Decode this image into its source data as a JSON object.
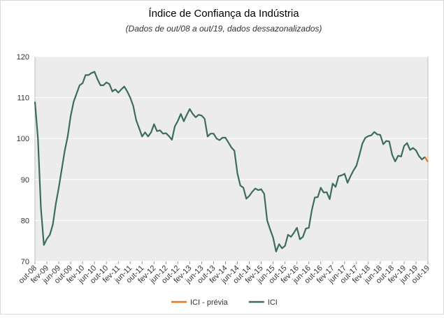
{
  "chart_data": {
    "type": "line",
    "title": "Índice de Confiança da Indústria",
    "subtitle": "(Dados de out/08 a out/19, dados dessazonalizados)",
    "categories": [
      "out-08",
      null,
      null,
      null,
      "fev-09",
      null,
      null,
      null,
      "jun-09",
      null,
      null,
      null,
      "out-09",
      null,
      null,
      null,
      "fev-10",
      null,
      null,
      null,
      "jun-10",
      null,
      null,
      null,
      "out-10",
      null,
      null,
      null,
      "fev-11",
      null,
      null,
      null,
      "jun-11",
      null,
      null,
      null,
      "out-11",
      null,
      null,
      null,
      "fev-12",
      null,
      null,
      null,
      "jun-12",
      null,
      null,
      null,
      "out-12",
      null,
      null,
      null,
      "fev-13",
      null,
      null,
      null,
      "jun-13",
      null,
      null,
      null,
      "out-13",
      null,
      null,
      null,
      "fev-14",
      null,
      null,
      null,
      "jun-14",
      null,
      null,
      null,
      "out-14",
      null,
      null,
      null,
      "fev-15",
      null,
      null,
      null,
      "jun-15",
      null,
      null,
      null,
      "out-15",
      null,
      null,
      null,
      "fev-16",
      null,
      null,
      null,
      "jun-16",
      null,
      null,
      null,
      "out-16",
      null,
      null,
      null,
      "fev-17",
      null,
      null,
      null,
      "jun-17",
      null,
      null,
      null,
      "out-17",
      null,
      null,
      null,
      "fev-18",
      null,
      null,
      null,
      "jun-18",
      null,
      null,
      null,
      "out-18",
      null,
      null,
      null,
      "fev-19",
      null,
      null,
      null,
      "jun-19",
      null,
      null,
      null,
      "out-19"
    ],
    "series": [
      {
        "name": "ICI - prévia",
        "color": "#e87722",
        "values": [
          null,
          null,
          null,
          null,
          null,
          null,
          null,
          null,
          null,
          null,
          null,
          null,
          null,
          null,
          null,
          null,
          null,
          null,
          null,
          null,
          null,
          null,
          null,
          null,
          null,
          null,
          null,
          null,
          null,
          null,
          null,
          null,
          null,
          null,
          null,
          null,
          null,
          null,
          null,
          null,
          null,
          null,
          null,
          null,
          null,
          null,
          null,
          null,
          null,
          null,
          null,
          null,
          null,
          null,
          null,
          null,
          null,
          null,
          null,
          null,
          null,
          null,
          null,
          null,
          null,
          null,
          null,
          null,
          null,
          null,
          null,
          null,
          null,
          null,
          null,
          null,
          null,
          null,
          null,
          null,
          null,
          null,
          null,
          null,
          null,
          null,
          null,
          null,
          null,
          null,
          null,
          null,
          null,
          null,
          null,
          null,
          null,
          null,
          null,
          null,
          null,
          null,
          null,
          null,
          null,
          null,
          null,
          null,
          null,
          null,
          null,
          null,
          null,
          null,
          null,
          null,
          null,
          null,
          null,
          null,
          null,
          null,
          null,
          null,
          null,
          null,
          null,
          null,
          null,
          null,
          null,
          95.5,
          94.3
        ]
      },
      {
        "name": "ICI",
        "color": "#3d6b5e",
        "values": [
          109,
          100,
          83,
          74,
          75.5,
          76.5,
          79,
          84,
          88,
          92.5,
          97,
          100.5,
          105.5,
          109,
          111,
          113,
          113.5,
          115.5,
          115.5,
          116,
          116.3,
          114.5,
          113,
          113,
          113.7,
          113.3,
          111.5,
          112,
          111.2,
          112,
          112.7,
          111.5,
          110,
          108,
          104.5,
          102.5,
          100.5,
          101.5,
          100.5,
          101.5,
          103.5,
          101.8,
          102,
          101.2,
          101.3,
          100.6,
          99.7,
          103,
          104.3,
          106,
          104.2,
          105.8,
          107.2,
          106,
          105.2,
          105.8,
          105.6,
          104.8,
          100.5,
          101.2,
          101.2,
          100,
          99.6,
          100.2,
          100.2,
          99,
          97.8,
          97,
          91.5,
          88.5,
          88,
          85.3,
          86,
          87,
          87.8,
          87.4,
          87.6,
          86.5,
          80,
          77.8,
          75.8,
          72.4,
          74.2,
          73.2,
          73.8,
          76.5,
          76,
          77,
          78.2,
          75.4,
          76,
          78,
          78.2,
          82.5,
          85.6,
          85.7,
          88,
          86.8,
          86.9,
          85.2,
          89,
          88.2,
          90.8,
          91,
          91.4,
          89.2,
          90.8,
          92.2,
          93.4,
          96,
          98.8,
          100.2,
          100.6,
          100.8,
          101.6,
          101,
          100.9,
          98.6,
          99.4,
          99.3,
          96,
          94.4,
          95.8,
          95.6,
          98.2,
          98.9,
          97.2,
          97.7,
          97.1,
          95.7,
          94.9,
          95.5,
          null
        ]
      }
    ],
    "ylim": [
      70,
      120
    ],
    "yticks": [
      70,
      80,
      90,
      100,
      110,
      120
    ],
    "grid": true,
    "legend": "bottom"
  }
}
